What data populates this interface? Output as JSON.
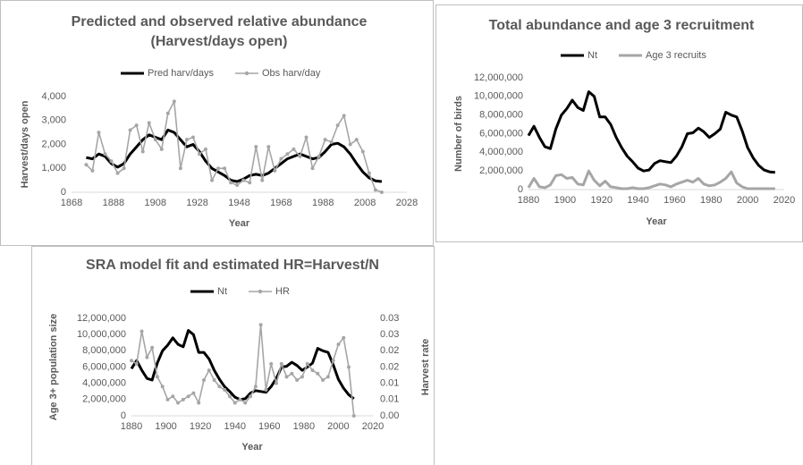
{
  "chart_data": [
    {
      "type": "line",
      "title": "Predicted and observed relative abundance (Harvest/days open)",
      "x_label": "Year",
      "y_label": "Harvest/days open",
      "legend": "top",
      "grid": false,
      "x": [
        1875,
        1878,
        1881,
        1884,
        1887,
        1890,
        1893,
        1896,
        1899,
        1902,
        1905,
        1908,
        1911,
        1914,
        1917,
        1920,
        1923,
        1926,
        1929,
        1932,
        1935,
        1938,
        1941,
        1944,
        1947,
        1950,
        1953,
        1956,
        1959,
        1962,
        1965,
        1968,
        1971,
        1974,
        1977,
        1980,
        1983,
        1986,
        1989,
        1992,
        1995,
        1998,
        2001,
        2004,
        2007,
        2010,
        2013,
        2016
      ],
      "xlim": [
        1868,
        2028
      ],
      "xticks": [
        1868,
        1888,
        1908,
        1928,
        1948,
        1968,
        1988,
        2008,
        2028
      ],
      "ylim": [
        0,
        4000
      ],
      "yticks": [
        0,
        {
          "value": 1000,
          "label": "1,000"
        },
        {
          "value": 2000,
          "label": "2,000"
        },
        {
          "value": 3000,
          "label": "3,000"
        },
        {
          "value": 4000,
          "label": "4,000"
        }
      ],
      "series": [
        {
          "name": "Pred harv/days",
          "color": "#000000",
          "marker": false,
          "values": [
            1450,
            1400,
            1600,
            1500,
            1200,
            1050,
            1200,
            1600,
            1900,
            2200,
            2400,
            2300,
            2200,
            2600,
            2500,
            2200,
            1900,
            2000,
            1700,
            1300,
            1000,
            850,
            700,
            500,
            450,
            550,
            700,
            750,
            700,
            800,
            1000,
            1200,
            1400,
            1500,
            1600,
            1500,
            1400,
            1450,
            1700,
            2000,
            2050,
            1900,
            1600,
            1200,
            850,
            600,
            480,
            450
          ]
        },
        {
          "name": "Obs harv/day",
          "color": "#a6a6a6",
          "marker": true,
          "values": [
            1150,
            900,
            2500,
            1600,
            1300,
            800,
            1000,
            2600,
            2800,
            1700,
            2900,
            2200,
            1800,
            3300,
            3800,
            1000,
            2200,
            2300,
            1600,
            1800,
            500,
            1000,
            1000,
            400,
            300,
            500,
            400,
            1900,
            500,
            1900,
            900,
            1400,
            1600,
            1800,
            1500,
            2300,
            1000,
            1500,
            2200,
            2100,
            2800,
            3200,
            2000,
            2200,
            1700,
            800,
            100,
            0
          ]
        }
      ]
    },
    {
      "type": "line",
      "title": "Total abundance and age 3 recruitment",
      "x_label": "Year",
      "y_label": "Number of birds",
      "legend": "top",
      "grid": false,
      "x": [
        1880,
        1883,
        1886,
        1889,
        1892,
        1895,
        1898,
        1901,
        1904,
        1907,
        1910,
        1913,
        1916,
        1919,
        1922,
        1925,
        1928,
        1931,
        1934,
        1937,
        1940,
        1943,
        1946,
        1949,
        1952,
        1955,
        1958,
        1961,
        1964,
        1967,
        1970,
        1973,
        1976,
        1979,
        1982,
        1985,
        1988,
        1991,
        1994,
        1997,
        2000,
        2003,
        2006,
        2009,
        2012,
        2015
      ],
      "xlim": [
        1880,
        2020
      ],
      "xticks": [
        1880,
        1900,
        1920,
        1940,
        1960,
        1980,
        2000,
        2020
      ],
      "ylim": [
        0,
        12000000
      ],
      "yticks": [
        0,
        {
          "value": 2000000,
          "label": "2,000,000"
        },
        {
          "value": 4000000,
          "label": "4,000,000"
        },
        {
          "value": 6000000,
          "label": "6,000,000"
        },
        {
          "value": 8000000,
          "label": "8,000,000"
        },
        {
          "value": 10000000,
          "label": "10,000,000"
        },
        {
          "value": 12000000,
          "label": "12,000,000"
        }
      ],
      "series": [
        {
          "name": "Nt",
          "color": "#000000",
          "marker": false,
          "values": [
            5800000,
            6800000,
            5600000,
            4600000,
            4400000,
            6500000,
            8000000,
            8700000,
            9600000,
            8800000,
            8500000,
            10500000,
            10000000,
            7800000,
            7800000,
            7000000,
            5600000,
            4500000,
            3600000,
            3000000,
            2300000,
            2000000,
            2100000,
            2800000,
            3100000,
            3000000,
            2900000,
            3600000,
            4600000,
            6000000,
            6100000,
            6600000,
            6200000,
            5600000,
            6000000,
            6500000,
            8300000,
            8000000,
            7800000,
            6300000,
            4500000,
            3400000,
            2600000,
            2100000,
            1900000,
            1850000
          ]
        },
        {
          "name": "Age 3 recruits",
          "color": "#a6a6a6",
          "marker": false,
          "values": [
            200000,
            1200000,
            300000,
            200000,
            500000,
            1500000,
            1600000,
            1200000,
            1300000,
            600000,
            500000,
            2000000,
            1000000,
            400000,
            900000,
            300000,
            200000,
            100000,
            100000,
            200000,
            100000,
            100000,
            200000,
            400000,
            600000,
            500000,
            300000,
            600000,
            800000,
            1000000,
            800000,
            1200000,
            600000,
            400000,
            500000,
            800000,
            1200000,
            1900000,
            700000,
            300000,
            100000,
            100000,
            100000,
            100000,
            100000,
            100000
          ]
        }
      ]
    },
    {
      "type": "line",
      "title": "SRA model fit and estimated HR=Harvest/N",
      "x_label": "Year",
      "y_label": "Age 3+ population size",
      "y2_label": "Harvest rate",
      "legend": "top",
      "grid": false,
      "x": [
        1880,
        1883,
        1886,
        1889,
        1892,
        1895,
        1898,
        1901,
        1904,
        1907,
        1910,
        1913,
        1916,
        1919,
        1922,
        1925,
        1928,
        1931,
        1934,
        1937,
        1940,
        1943,
        1946,
        1949,
        1952,
        1955,
        1958,
        1961,
        1964,
        1967,
        1970,
        1973,
        1976,
        1979,
        1982,
        1985,
        1988,
        1991,
        1994,
        1997,
        2000,
        2003,
        2006,
        2009
      ],
      "xlim": [
        1880,
        2020
      ],
      "xticks": [
        1880,
        1900,
        1920,
        1940,
        1960,
        1980,
        2000,
        2020
      ],
      "ylim": [
        0,
        12000000
      ],
      "yticks": [
        0,
        {
          "value": 2000000,
          "label": "2,000,000"
        },
        {
          "value": 4000000,
          "label": "4,000,000"
        },
        {
          "value": 6000000,
          "label": "6,000,000"
        },
        {
          "value": 8000000,
          "label": "8,000,000"
        },
        {
          "value": 10000000,
          "label": "10,000,000"
        },
        {
          "value": 12000000,
          "label": "12,000,000"
        }
      ],
      "y2lim": [
        0,
        0.03
      ],
      "y2ticks": [
        {
          "value": 0,
          "label": "0.00"
        },
        {
          "value": 0.005,
          "label": "0.01"
        },
        {
          "value": 0.01,
          "label": "0.01"
        },
        {
          "value": 0.015,
          "label": "0.02"
        },
        {
          "value": 0.02,
          "label": "0.02"
        },
        {
          "value": 0.025,
          "label": "0.03"
        },
        {
          "value": 0.03,
          "label": "0.03"
        }
      ],
      "series": [
        {
          "name": "Nt",
          "color": "#000000",
          "marker": false,
          "values": [
            5800000,
            6800000,
            5600000,
            4600000,
            4400000,
            6500000,
            8000000,
            8700000,
            9600000,
            8800000,
            8500000,
            10500000,
            10000000,
            7800000,
            7800000,
            7000000,
            5600000,
            4500000,
            3600000,
            3000000,
            2300000,
            2000000,
            2100000,
            2800000,
            3100000,
            3000000,
            2900000,
            3600000,
            4600000,
            6000000,
            6100000,
            6600000,
            6200000,
            5600000,
            6000000,
            6500000,
            8300000,
            8000000,
            7800000,
            6300000,
            4500000,
            3400000,
            2600000,
            2100000
          ]
        },
        {
          "name": "HR",
          "color": "#a6a6a6",
          "marker": true,
          "axis": "y2",
          "values": [
            0.017,
            0.016,
            0.026,
            0.018,
            0.021,
            0.012,
            0.009,
            0.005,
            0.006,
            0.004,
            0.005,
            0.006,
            0.007,
            0.004,
            0.011,
            0.014,
            0.011,
            0.009,
            0.008,
            0.006,
            0.004,
            0.005,
            0.004,
            0.006,
            0.009,
            0.028,
            0.008,
            0.016,
            0.01,
            0.016,
            0.012,
            0.013,
            0.011,
            0.012,
            0.016,
            0.014,
            0.013,
            0.011,
            0.012,
            0.017,
            0.022,
            0.024,
            0.015,
            0
          ]
        }
      ]
    }
  ]
}
